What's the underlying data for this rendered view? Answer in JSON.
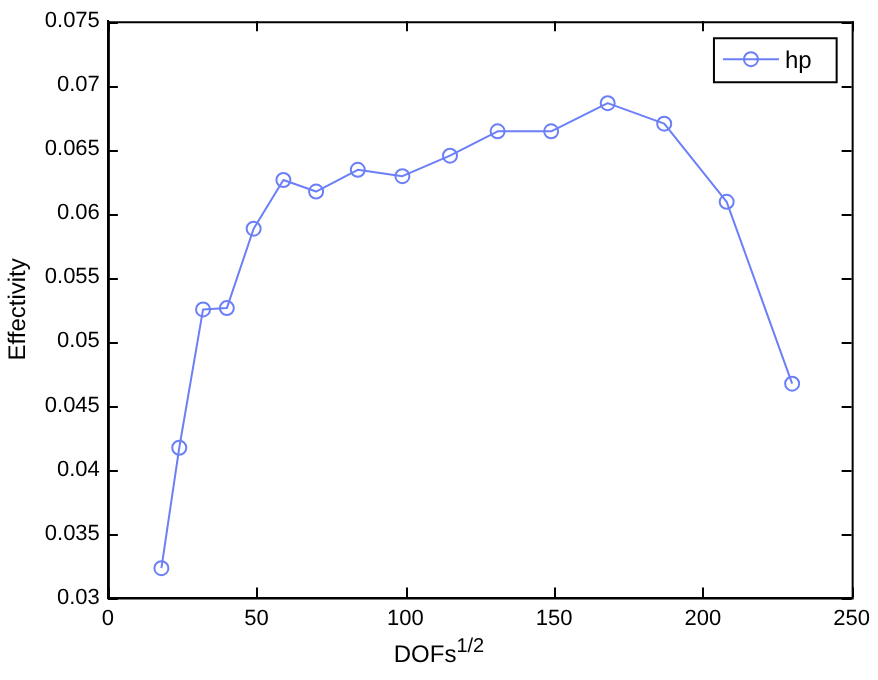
{
  "chart_data": {
    "type": "line",
    "xlabel": "DOFs$^{1/2}$",
    "ylabel": "Effectivity",
    "x": [
      18,
      24,
      32,
      40,
      49,
      59,
      70,
      84,
      99,
      115,
      131,
      149,
      168,
      187,
      208,
      230
    ],
    "series": [
      {
        "name": "hp",
        "color": "#6b7ff7",
        "values": [
          0.0323,
          0.0417,
          0.0525,
          0.0526,
          0.0588,
          0.0626,
          0.0617,
          0.0634,
          0.0629,
          0.0645,
          0.0664,
          0.0664,
          0.0686,
          0.067,
          0.0609,
          0.0467
        ]
      }
    ],
    "xlim": [
      0,
      250
    ],
    "xticks": [
      0,
      50,
      100,
      150,
      200,
      250
    ],
    "ylim": [
      0.03,
      0.075
    ],
    "yticks": [
      0.03,
      0.035,
      0.04,
      0.045,
      0.05,
      0.055,
      0.06,
      0.065,
      0.07,
      0.075
    ],
    "grid": false,
    "legend": "top right",
    "marker": "circle",
    "line_style": "solid"
  }
}
